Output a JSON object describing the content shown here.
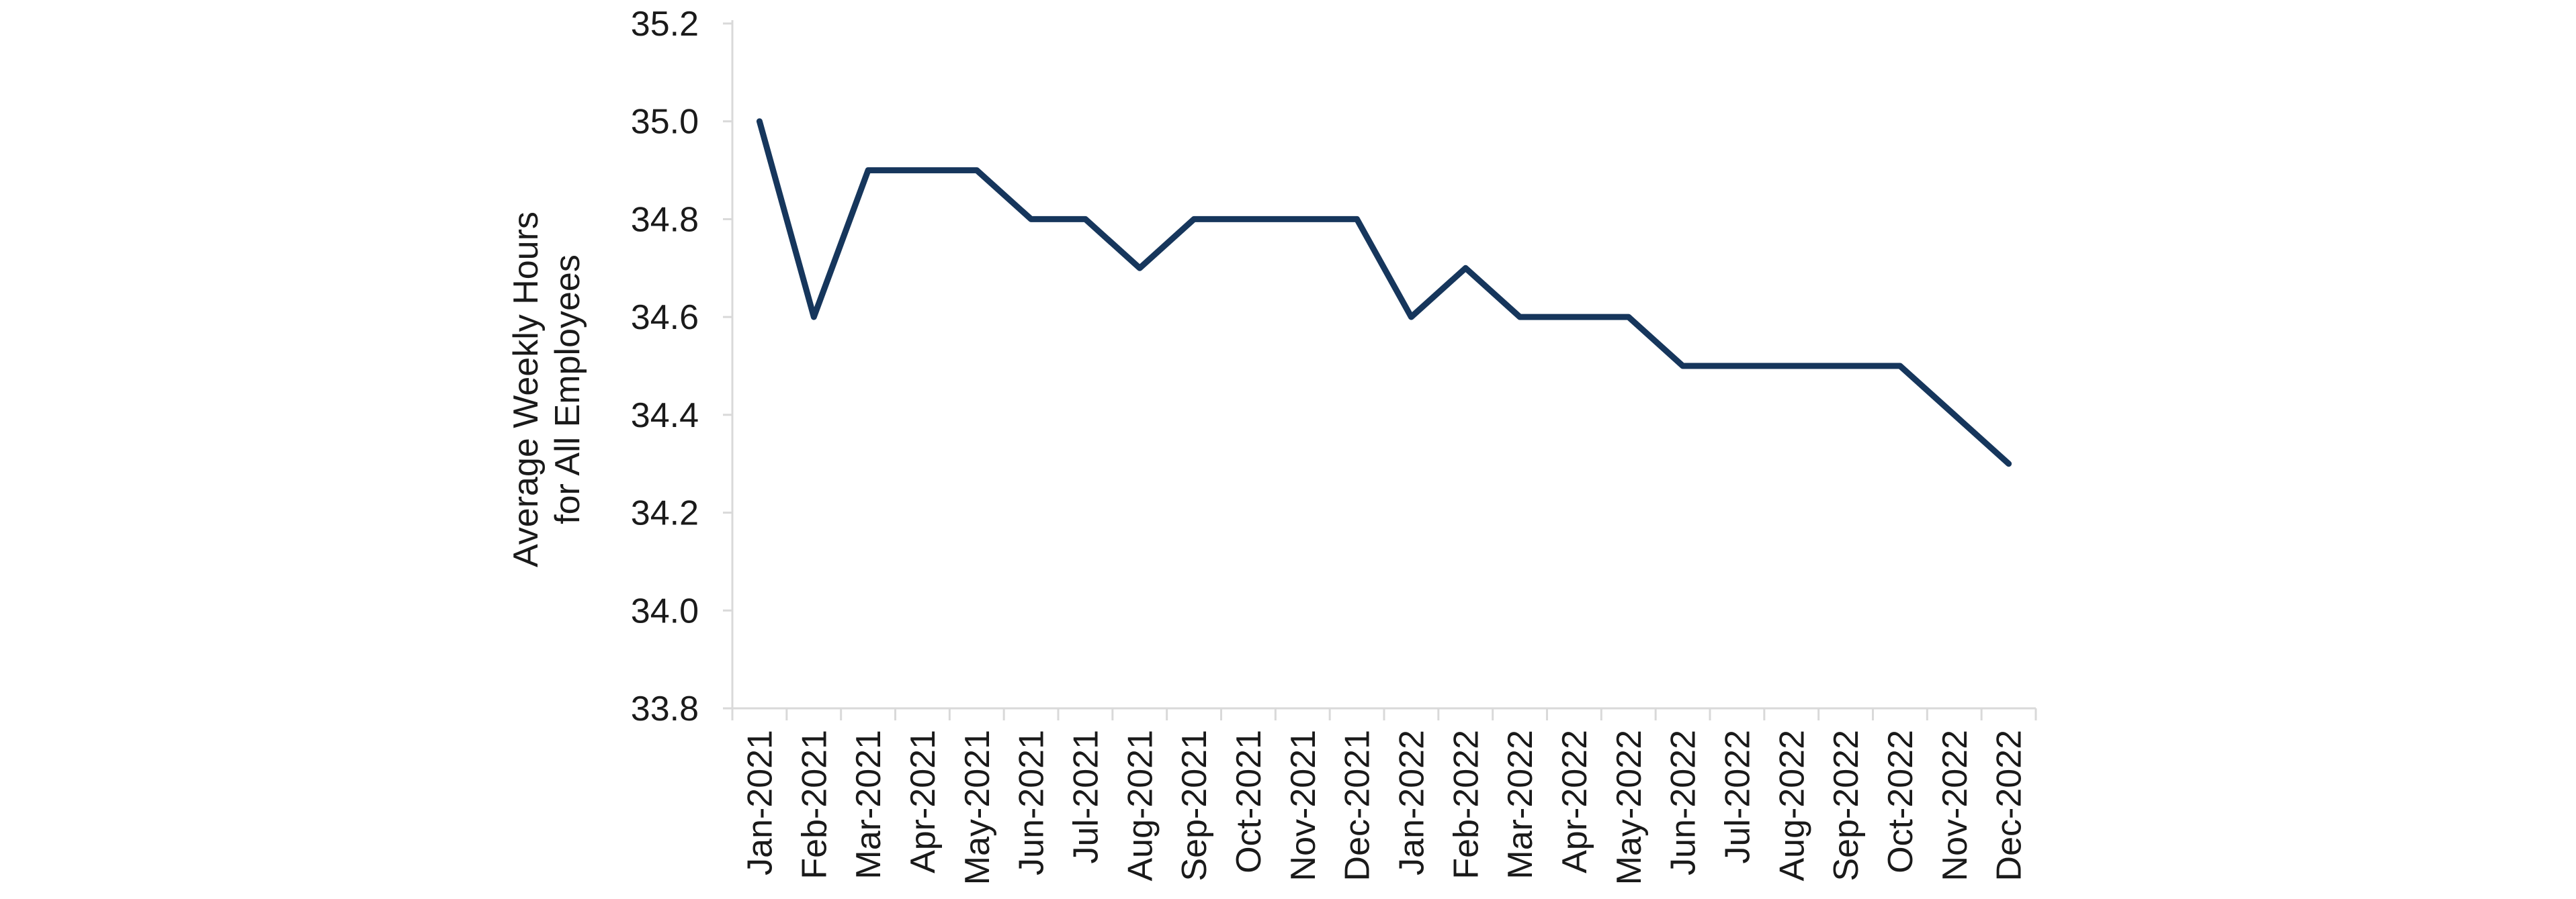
{
  "chart_data": {
    "type": "line",
    "title": "",
    "xlabel": "",
    "ylabel_lines": [
      "Average Weekly Hours",
      "for All Employees"
    ],
    "ylim": [
      33.8,
      35.2
    ],
    "yticks": [
      "33.8",
      "34.0",
      "34.2",
      "34.4",
      "34.6",
      "34.8",
      "35.0",
      "35.2"
    ],
    "grid": false,
    "legend": "none",
    "categories": [
      "Jan-2021",
      "Feb-2021",
      "Mar-2021",
      "Apr-2021",
      "May-2021",
      "Jun-2021",
      "Jul-2021",
      "Aug-2021",
      "Sep-2021",
      "Oct-2021",
      "Nov-2021",
      "Dec-2021",
      "Jan-2022",
      "Feb-2022",
      "Mar-2022",
      "Apr-2022",
      "May-2022",
      "Jun-2022",
      "Jul-2022",
      "Aug-2022",
      "Sep-2022",
      "Oct-2022",
      "Nov-2022",
      "Dec-2022"
    ],
    "series": [
      {
        "values": [
          35.0,
          34.6,
          34.9,
          34.9,
          34.9,
          34.8,
          34.8,
          34.7,
          34.8,
          34.8,
          34.8,
          34.8,
          34.6,
          34.7,
          34.6,
          34.6,
          34.6,
          34.5,
          34.5,
          34.5,
          34.5,
          34.5,
          34.4,
          34.3
        ],
        "color": "#16365c"
      }
    ],
    "axis_color": "#d9d9d9"
  }
}
